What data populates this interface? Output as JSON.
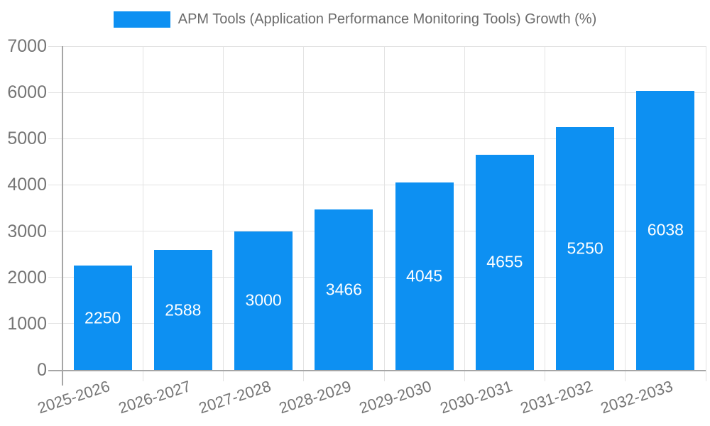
{
  "chart_data": {
    "type": "bar",
    "title": "APM Tools (Application Performance Monitoring Tools) Growth (%)",
    "legend": {
      "label": "APM Tools (Application Performance Monitoring Tools) Growth (%)",
      "position": "top-center"
    },
    "categories": [
      "2025-2026",
      "2026-2027",
      "2027-2028",
      "2028-2029",
      "2029-2030",
      "2030-2031",
      "2031-2032",
      "2032-2033"
    ],
    "values": [
      2250,
      2588,
      3000,
      3466,
      4045,
      4655,
      5250,
      6038
    ],
    "bar_value_labels": [
      "2250",
      "2588",
      "3000",
      "3466",
      "4045",
      "4655",
      "5250",
      "6038"
    ],
    "xlabel": "",
    "ylabel": "",
    "ylim": [
      0,
      7000
    ],
    "yticks": [
      0,
      1000,
      2000,
      3000,
      4000,
      5000,
      6000,
      7000
    ],
    "grid": true,
    "x_label_rotation_deg": -18,
    "legend_position": "top",
    "colors": {
      "bar": "#0d90f2",
      "bar_value_text": "#ffffff",
      "grid_line": "#e3e3e3",
      "axis_line": "#a6a6a6",
      "tick_text": "#757575",
      "legend_text": "#6b6b6b",
      "background": "#ffffff"
    }
  }
}
